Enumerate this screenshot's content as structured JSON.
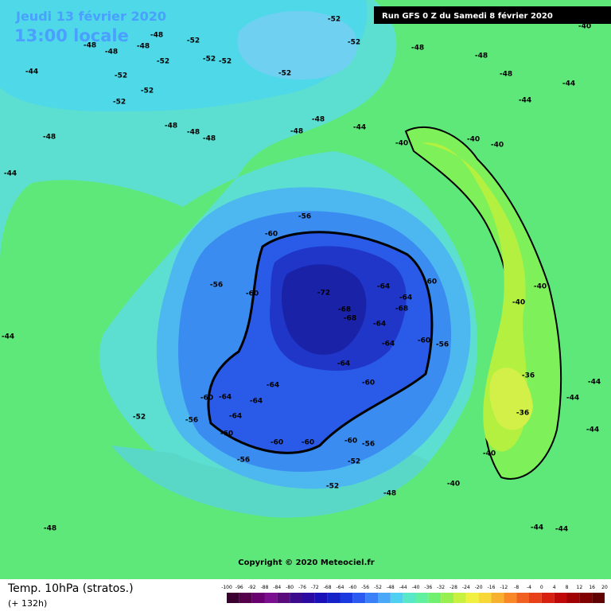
{
  "header": {
    "date": "Jeudi 13 février 2020",
    "time": "13:00 locale",
    "run": "Run GFS 0 Z du Samedi 8 février 2020"
  },
  "copyright": "Copyright © 2020 Meteociel.fr",
  "footer": {
    "title": "Temp. 10hPa (stratos.)",
    "lead": "(+ 132h)"
  },
  "legend": {
    "values": [
      -100,
      -96,
      -92,
      -88,
      -84,
      -80,
      -76,
      -72,
      -68,
      -64,
      -60,
      -56,
      -52,
      -48,
      -44,
      -40,
      -36,
      -32,
      -28,
      -24,
      -20,
      -16,
      -12,
      -8,
      -4,
      0,
      4,
      8,
      12,
      16,
      20
    ]
  },
  "map": {
    "labels": [
      "-52",
      "-52",
      "-52",
      "-48",
      "-52",
      "-52",
      "-52",
      "-48",
      "-48",
      "-48",
      "-52",
      "-52",
      "-52",
      "-52",
      "-44",
      "-44",
      "-48",
      "-48",
      "-48",
      "-48",
      "-48",
      "-48",
      "-44",
      "-40",
      "-40",
      "-40",
      "-44",
      "-44",
      "-40",
      "-48",
      "-48",
      "-48",
      "-56",
      "-60",
      "-60",
      "-56",
      "-72",
      "-68",
      "-68",
      "-64",
      "-64",
      "-68",
      "-64",
      "-64",
      "-60",
      "-60",
      "-56",
      "-64",
      "-60",
      "-64",
      "-64",
      "-60",
      "-64",
      "-64",
      "-60",
      "-56",
      "-56",
      "-52",
      "-44",
      "-40",
      "-40",
      "-36",
      "-36",
      "-44",
      "-44",
      "-40",
      "-40",
      "-48",
      "-52",
      "-60",
      "-60",
      "-60",
      "-56",
      "-52",
      "-44",
      "-44",
      "-48",
      "-44"
    ]
  }
}
